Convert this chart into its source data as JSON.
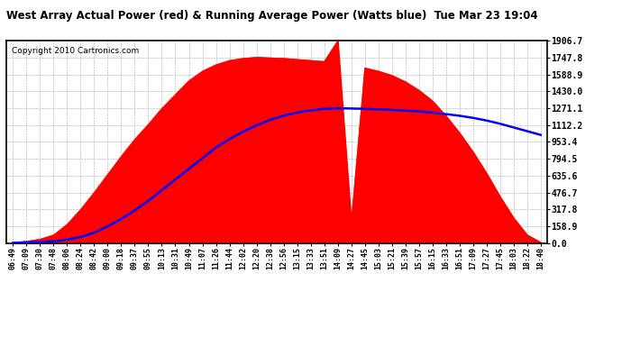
{
  "title": "West Array Actual Power (red) & Running Average Power (Watts blue)  Tue Mar 23 19:04",
  "copyright": "Copyright 2010 Cartronics.com",
  "y_ticks": [
    0.0,
    158.9,
    317.8,
    476.7,
    635.6,
    794.5,
    953.4,
    1112.2,
    1271.1,
    1430.0,
    1588.9,
    1747.8,
    1906.7
  ],
  "ylim": [
    0,
    1906.7
  ],
  "x_labels": [
    "06:49",
    "07:09",
    "07:30",
    "07:48",
    "08:06",
    "08:24",
    "08:42",
    "09:00",
    "09:18",
    "09:37",
    "09:55",
    "10:13",
    "10:31",
    "10:49",
    "11:07",
    "11:26",
    "11:44",
    "12:02",
    "12:20",
    "12:38",
    "12:56",
    "13:15",
    "13:33",
    "13:51",
    "14:09",
    "14:27",
    "14:45",
    "15:03",
    "15:21",
    "15:39",
    "15:57",
    "16:15",
    "16:33",
    "16:51",
    "17:09",
    "17:27",
    "17:45",
    "18:03",
    "18:22",
    "18:40"
  ],
  "actual_power": [
    10,
    20,
    40,
    80,
    180,
    320,
    480,
    650,
    820,
    980,
    1120,
    1270,
    1400,
    1530,
    1620,
    1680,
    1720,
    1740,
    1750,
    1745,
    1740,
    1730,
    1720,
    1710,
    1906,
    200,
    1650,
    1620,
    1580,
    1520,
    1440,
    1340,
    1200,
    1040,
    860,
    660,
    440,
    240,
    80,
    10
  ],
  "avg_power": [
    5,
    8,
    12,
    20,
    35,
    60,
    100,
    160,
    230,
    310,
    400,
    500,
    600,
    700,
    800,
    900,
    980,
    1050,
    1110,
    1160,
    1200,
    1230,
    1250,
    1265,
    1270,
    1268,
    1265,
    1260,
    1255,
    1248,
    1240,
    1230,
    1215,
    1200,
    1180,
    1155,
    1125,
    1090,
    1055,
    1020
  ],
  "actual_color": "#FF0000",
  "avg_color": "#0000FF",
  "bg_color": "#FFFFFF",
  "grid_color": "#AAAAAA",
  "title_color": "#000000"
}
